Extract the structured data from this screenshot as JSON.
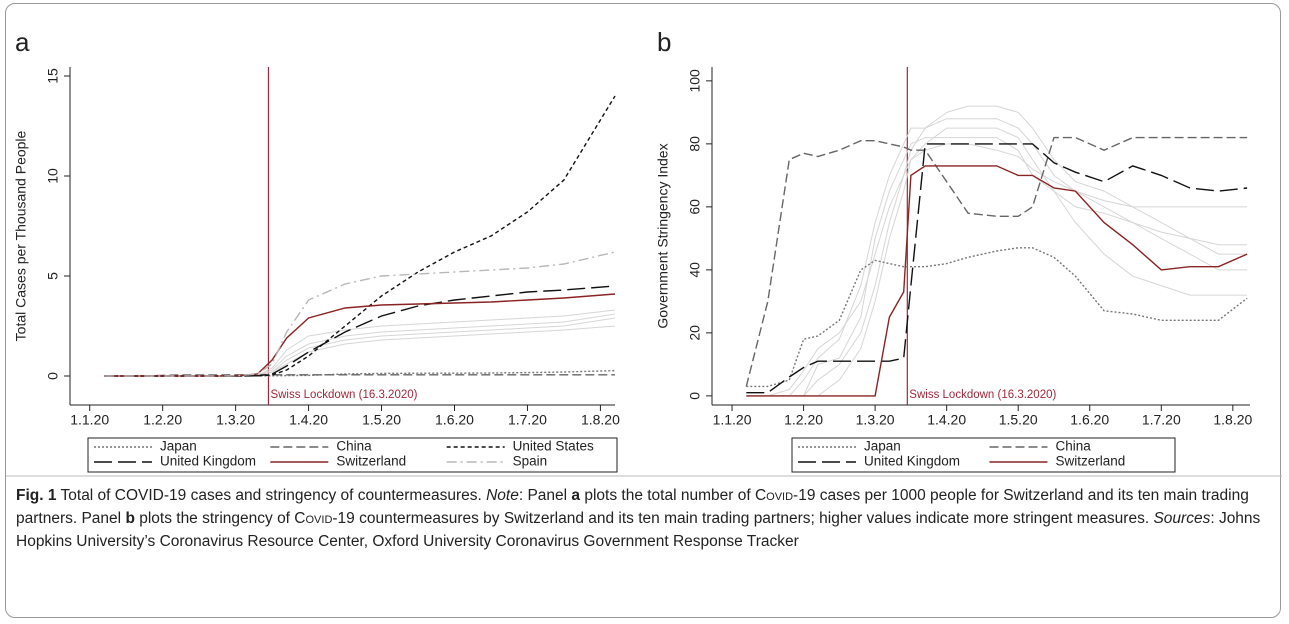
{
  "chart_data": [
    {
      "type": "line",
      "panel": "a",
      "y_label": "Total Cases per Thousand People",
      "x": [
        1.2,
        1.7,
        2.2,
        2.7,
        3.0,
        3.3,
        3.5,
        3.7,
        4.0,
        4.5,
        5.0,
        5.5,
        6.0,
        6.5,
        7.0,
        7.5,
        8.2
      ],
      "xlim": [
        0.73,
        8.2
      ],
      "xticks": [
        {
          "value": 1,
          "label": "1.1.20"
        },
        {
          "value": 2,
          "label": "1.2.20"
        },
        {
          "value": 3,
          "label": "1.3.20"
        },
        {
          "value": 4,
          "label": "1.4.20"
        },
        {
          "value": 5,
          "label": "1.5.20"
        },
        {
          "value": 6,
          "label": "1.6.20"
        },
        {
          "value": 7,
          "label": "1.7.20"
        },
        {
          "value": 8,
          "label": "1.8.20"
        }
      ],
      "ylim": [
        -1.45,
        15.45
      ],
      "yticks": [
        0,
        5,
        10,
        15
      ],
      "annotation": {
        "text": "Swiss Lockdown (16.3.2020)",
        "x": 3.45,
        "color": "#a0283a"
      },
      "legend_columns": 3,
      "series": [
        {
          "color": "#d6d6d6",
          "line_style": "solid",
          "values": [
            0,
            0,
            0,
            0,
            0,
            0.02,
            0.3,
            1.0,
            1.6,
            2.0,
            2.2,
            2.3,
            2.4,
            2.5,
            2.6,
            2.7,
            3.1
          ]
        },
        {
          "color": "#d6d6d6",
          "line_style": "solid",
          "values": [
            0,
            0,
            0,
            0,
            0,
            0.02,
            0.2,
            0.8,
            1.4,
            1.8,
            2.0,
            2.1,
            2.2,
            2.3,
            2.4,
            2.5,
            2.9
          ]
        },
        {
          "color": "#d6d6d6",
          "line_style": "solid",
          "values": [
            0,
            0,
            0,
            0,
            0,
            0.01,
            0.2,
            0.6,
            1.2,
            1.6,
            1.8,
            1.9,
            2.0,
            2.1,
            2.2,
            2.3,
            2.5
          ]
        },
        {
          "color": "#d6d6d6",
          "line_style": "solid",
          "values": [
            0,
            0,
            0,
            0,
            0,
            0.03,
            0.4,
            1.3,
            2.0,
            2.3,
            2.5,
            2.6,
            2.7,
            2.8,
            2.9,
            3.0,
            3.3
          ]
        },
        {
          "name": "Japan",
          "color": "#777777",
          "line_style": "dotted",
          "values": [
            0,
            0,
            0,
            0,
            0,
            0.01,
            0.01,
            0.02,
            0.03,
            0.1,
            0.13,
            0.14,
            0.14,
            0.15,
            0.17,
            0.2,
            0.27
          ]
        },
        {
          "name": "China",
          "color": "#666666",
          "line_style": "dashed",
          "values": [
            0,
            0,
            0.05,
            0.05,
            0.06,
            0.06,
            0.06,
            0.06,
            0.06,
            0.06,
            0.06,
            0.06,
            0.06,
            0.06,
            0.06,
            0.06,
            0.06
          ]
        },
        {
          "name": "United States",
          "color": "#111111",
          "line_style": "shortdash",
          "values": [
            0,
            0,
            0,
            0,
            0,
            0.01,
            0.05,
            0.3,
            1.0,
            2.5,
            4.0,
            5.2,
            6.2,
            7.0,
            8.2,
            9.8,
            14
          ]
        },
        {
          "name": "United Kingdom",
          "color": "#111111",
          "line_style": "longdash",
          "values": [
            0,
            0,
            0,
            0,
            0,
            0.01,
            0.1,
            0.5,
            1.2,
            2.2,
            3.0,
            3.5,
            3.8,
            4.0,
            4.2,
            4.3,
            4.5
          ]
        },
        {
          "name": "Switzerland",
          "color": "#8b2323",
          "line_style": "solid",
          "values": [
            0,
            0,
            0,
            0,
            0.01,
            0.1,
            0.8,
            1.9,
            2.9,
            3.4,
            3.55,
            3.6,
            3.65,
            3.7,
            3.8,
            3.9,
            4.1
          ]
        },
        {
          "name": "Spain",
          "color": "#b8b8b8",
          "line_style": "dashdot",
          "values": [
            0,
            0,
            0,
            0,
            0.01,
            0.1,
            0.6,
            2.2,
            3.8,
            4.6,
            5.0,
            5.1,
            5.2,
            5.3,
            5.4,
            5.6,
            6.2
          ]
        }
      ]
    },
    {
      "type": "line",
      "panel": "b",
      "y_label": "Government Stringency Index",
      "x": [
        1.2,
        1.5,
        1.8,
        2.0,
        2.2,
        2.5,
        2.8,
        3.0,
        3.2,
        3.4,
        3.5,
        3.7,
        4.0,
        4.3,
        4.7,
        5.0,
        5.2,
        5.5,
        5.8,
        6.2,
        6.6,
        7.0,
        7.4,
        7.8,
        8.2
      ],
      "xlim": [
        0.72,
        8.24
      ],
      "xticks": [
        {
          "value": 1,
          "label": "1.1.20"
        },
        {
          "value": 2,
          "label": "1.2.20"
        },
        {
          "value": 3,
          "label": "1.3.20"
        },
        {
          "value": 4,
          "label": "1.4.20"
        },
        {
          "value": 5,
          "label": "1.5.20"
        },
        {
          "value": 6,
          "label": "1.6.20"
        },
        {
          "value": 7,
          "label": "1.7.20"
        },
        {
          "value": 8,
          "label": "1.8.20"
        }
      ],
      "ylim": [
        -2.9,
        104.4
      ],
      "yticks": [
        0,
        20,
        40,
        60,
        80,
        100
      ],
      "annotation": {
        "text": "Swiss Lockdown (16.3.2020)",
        "x": 3.45,
        "color": "#a0283a"
      },
      "legend_columns": 2,
      "series": [
        {
          "color": "#d6d6d6",
          "line_style": "solid",
          "values": [
            0,
            0,
            0,
            5,
            12,
            18,
            35,
            55,
            70,
            80,
            85,
            85,
            88,
            88,
            88,
            85,
            80,
            70,
            65,
            60,
            55,
            50,
            45,
            40,
            40
          ]
        },
        {
          "color": "#d6d6d6",
          "line_style": "solid",
          "values": [
            0,
            0,
            0,
            0,
            10,
            12,
            25,
            50,
            65,
            75,
            80,
            82,
            82,
            82,
            82,
            78,
            70,
            65,
            60,
            58,
            55,
            52,
            50,
            48,
            48
          ]
        },
        {
          "color": "#d6d6d6",
          "line_style": "solid",
          "values": [
            0,
            0,
            2,
            8,
            15,
            20,
            30,
            45,
            60,
            70,
            78,
            85,
            90,
            92,
            92,
            90,
            85,
            75,
            68,
            65,
            60,
            55,
            50,
            45,
            45
          ]
        },
        {
          "color": "#d6d6d6",
          "line_style": "solid",
          "values": [
            0,
            0,
            0,
            0,
            5,
            10,
            20,
            35,
            55,
            70,
            75,
            78,
            80,
            80,
            78,
            76,
            72,
            68,
            65,
            62,
            60,
            60,
            60,
            60,
            60
          ]
        },
        {
          "color": "#d6d6d6",
          "line_style": "solid",
          "values": [
            0,
            0,
            0,
            0,
            0,
            5,
            15,
            30,
            50,
            65,
            75,
            80,
            85,
            85,
            85,
            82,
            75,
            65,
            55,
            45,
            38,
            35,
            32,
            32,
            32
          ]
        },
        {
          "name": "Japan",
          "color": "#777777",
          "line_style": "dotted",
          "values": [
            3,
            3,
            5,
            18,
            19,
            24,
            40,
            43,
            42,
            41,
            41,
            41,
            42,
            44,
            46,
            47,
            47,
            44,
            38,
            27,
            26,
            24,
            24,
            24,
            31
          ]
        },
        {
          "name": "China",
          "color": "#666666",
          "line_style": "dashed",
          "values": [
            3,
            30,
            75,
            77,
            76,
            78,
            81,
            81,
            80,
            79,
            78,
            78,
            68,
            58,
            57,
            57,
            60,
            82,
            82,
            78,
            82,
            82,
            82,
            82,
            82
          ]
        },
        {
          "name": "United Kingdom",
          "color": "#111111",
          "line_style": "longdash",
          "values": [
            1,
            1,
            6,
            9,
            11,
            11,
            11,
            11,
            11,
            12,
            35,
            80,
            80,
            80,
            80,
            80,
            80,
            74,
            71,
            68,
            73,
            70,
            66,
            65,
            66
          ]
        },
        {
          "name": "Switzerland",
          "color": "#8b2323",
          "line_style": "solid",
          "values": [
            0,
            0,
            0,
            0,
            0,
            0,
            0,
            0,
            25,
            33,
            70,
            73,
            73,
            73,
            73,
            70,
            70,
            66,
            65,
            55,
            48,
            40,
            41,
            41,
            45
          ]
        }
      ]
    }
  ],
  "caption": [
    {
      "text": "Fig. 1",
      "style": "bold"
    },
    {
      "text": " Total of COVID-19 cases and stringency of countermeasures. ",
      "style": "normal"
    },
    {
      "text": "Note",
      "style": "italic"
    },
    {
      "text": ": Panel ",
      "style": "normal"
    },
    {
      "text": "a",
      "style": "bold"
    },
    {
      "text": " plots the total number of ",
      "style": "normal"
    },
    {
      "text": "Covid",
      "style": "smallcaps"
    },
    {
      "text": "-19 cases per 1000 people for Switzerland and its ten main trading partners. Panel ",
      "style": "normal"
    },
    {
      "text": "b",
      "style": "bold"
    },
    {
      "text": " plots the stringency of ",
      "style": "normal"
    },
    {
      "text": "Covid",
      "style": "smallcaps"
    },
    {
      "text": "-19 countermeasures by Switzerland and its ten main trading partners; higher values indicate more stringent measures. ",
      "style": "normal"
    },
    {
      "text": "Sources",
      "style": "italic"
    },
    {
      "text": ": Johns Hopkins University’s Coronavirus Resource Center, Oxford University Coronavirus Government Response Tracker",
      "style": "normal"
    }
  ]
}
